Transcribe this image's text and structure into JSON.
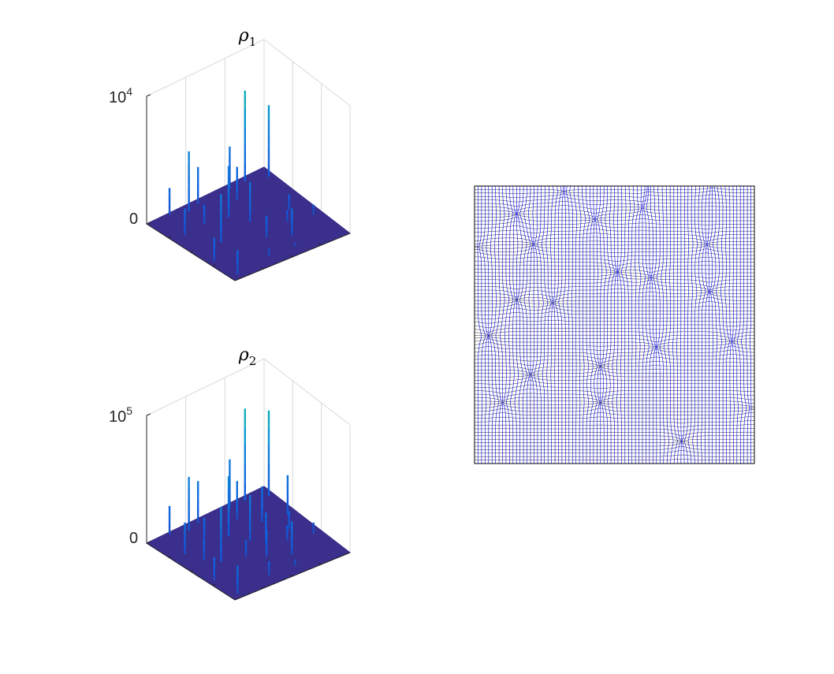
{
  "chart_data": [
    {
      "type": "surface3d",
      "title": "ρ",
      "title_subscript": "1",
      "zaxis": {
        "tick_labels": [
          "0",
          "10"
        ],
        "tick_exponents": [
          "",
          "4"
        ],
        "ylim": [
          0,
          10000
        ]
      },
      "grid": true,
      "colormap": "parula",
      "peaks": [
        {
          "x": 0.4,
          "y": 0.05,
          "z": 2900
        },
        {
          "x": 0.3,
          "y": 0.08,
          "z": 4700
        },
        {
          "x": 0.18,
          "y": 0.02,
          "z": 2100
        },
        {
          "x": 0.1,
          "y": 0.3,
          "z": 2100
        },
        {
          "x": 0.28,
          "y": 0.28,
          "z": 1500
        },
        {
          "x": 0.05,
          "y": 0.7,
          "z": 1800
        },
        {
          "x": 0.06,
          "y": 0.95,
          "z": 1900
        },
        {
          "x": 0.45,
          "y": 0.33,
          "z": 4000
        },
        {
          "x": 0.52,
          "y": 0.48,
          "z": 3100
        },
        {
          "x": 0.62,
          "y": 0.2,
          "z": 2600
        },
        {
          "x": 0.67,
          "y": 0.05,
          "z": 3300
        },
        {
          "x": 0.8,
          "y": 0.05,
          "z": 7100
        },
        {
          "x": 0.95,
          "y": 0.12,
          "z": 5600
        },
        {
          "x": 0.8,
          "y": 0.55,
          "z": 1200
        },
        {
          "x": 0.88,
          "y": 0.72,
          "z": 800
        },
        {
          "x": 0.48,
          "y": 0.72,
          "z": 1700
        },
        {
          "x": 0.62,
          "y": 0.82,
          "z": 2100
        },
        {
          "x": 0.35,
          "y": 0.92,
          "z": 600
        },
        {
          "x": 0.7,
          "y": 0.66,
          "z": 900
        },
        {
          "x": 0.22,
          "y": 0.55,
          "z": 3800
        },
        {
          "x": 0.55,
          "y": 0.95,
          "z": 300
        }
      ]
    },
    {
      "type": "surface3d",
      "title": "ρ",
      "title_subscript": "2",
      "zaxis": {
        "tick_labels": [
          "0",
          "10"
        ],
        "tick_exponents": [
          "",
          "5"
        ],
        "ylim": [
          0,
          100000
        ]
      },
      "grid": true,
      "colormap": "parula",
      "peaks": [
        {
          "x": 0.4,
          "y": 0.05,
          "z": 33000
        },
        {
          "x": 0.3,
          "y": 0.08,
          "z": 42000
        },
        {
          "x": 0.18,
          "y": 0.02,
          "z": 22000
        },
        {
          "x": 0.1,
          "y": 0.3,
          "z": 25000
        },
        {
          "x": 0.28,
          "y": 0.28,
          "z": 20000
        },
        {
          "x": 0.05,
          "y": 0.7,
          "z": 18000
        },
        {
          "x": 0.06,
          "y": 0.95,
          "z": 22000
        },
        {
          "x": 0.45,
          "y": 0.33,
          "z": 47000
        },
        {
          "x": 0.52,
          "y": 0.48,
          "z": 36000
        },
        {
          "x": 0.62,
          "y": 0.2,
          "z": 30000
        },
        {
          "x": 0.67,
          "y": 0.05,
          "z": 38000
        },
        {
          "x": 0.8,
          "y": 0.05,
          "z": 72000
        },
        {
          "x": 0.95,
          "y": 0.12,
          "z": 67000
        },
        {
          "x": 0.8,
          "y": 0.55,
          "z": 14000
        },
        {
          "x": 0.88,
          "y": 0.72,
          "z": 9000
        },
        {
          "x": 0.48,
          "y": 0.72,
          "z": 21000
        },
        {
          "x": 0.62,
          "y": 0.82,
          "z": 26000
        },
        {
          "x": 0.35,
          "y": 0.92,
          "z": 11000
        },
        {
          "x": 0.7,
          "y": 0.66,
          "z": 12000
        },
        {
          "x": 0.22,
          "y": 0.55,
          "z": 43000
        },
        {
          "x": 0.55,
          "y": 0.95,
          "z": 5000
        },
        {
          "x": 0.15,
          "y": 0.45,
          "z": 16000
        },
        {
          "x": 0.72,
          "y": 0.35,
          "z": 28000
        },
        {
          "x": 0.9,
          "y": 0.4,
          "z": 31000
        },
        {
          "x": 0.38,
          "y": 0.62,
          "z": 13000
        },
        {
          "x": 0.58,
          "y": 0.58,
          "z": 24000
        }
      ]
    },
    {
      "type": "mesh",
      "grid_lines_per_side": 80,
      "line_color": "#0000ff",
      "cluster_points": [
        {
          "x": 0.32,
          "y": 0.02,
          "s": 0.8
        },
        {
          "x": 0.62,
          "y": 0.01,
          "s": 0.7
        },
        {
          "x": 0.85,
          "y": 0.0,
          "s": 0.6
        },
        {
          "x": 0.15,
          "y": 0.1,
          "s": 1.0
        },
        {
          "x": 0.43,
          "y": 0.12,
          "s": 0.9
        },
        {
          "x": 0.6,
          "y": 0.08,
          "s": 0.8
        },
        {
          "x": 0.83,
          "y": 0.21,
          "s": 0.9
        },
        {
          "x": 0.01,
          "y": 0.22,
          "s": 0.8
        },
        {
          "x": 0.21,
          "y": 0.21,
          "s": 1.0
        },
        {
          "x": 0.51,
          "y": 0.31,
          "s": 1.1
        },
        {
          "x": 0.63,
          "y": 0.33,
          "s": 0.9
        },
        {
          "x": 0.84,
          "y": 0.38,
          "s": 1.0
        },
        {
          "x": 0.15,
          "y": 0.41,
          "s": 1.0
        },
        {
          "x": 0.28,
          "y": 0.42,
          "s": 1.0
        },
        {
          "x": 0.05,
          "y": 0.54,
          "s": 1.1
        },
        {
          "x": 0.65,
          "y": 0.58,
          "s": 1.0
        },
        {
          "x": 0.92,
          "y": 0.56,
          "s": 0.9
        },
        {
          "x": 0.45,
          "y": 0.65,
          "s": 1.0
        },
        {
          "x": 0.2,
          "y": 0.68,
          "s": 1.0
        },
        {
          "x": 0.1,
          "y": 0.78,
          "s": 0.9
        },
        {
          "x": 0.45,
          "y": 0.78,
          "s": 1.0
        },
        {
          "x": 0.99,
          "y": 0.8,
          "s": 0.7
        },
        {
          "x": 0.74,
          "y": 0.92,
          "s": 1.0
        }
      ]
    }
  ]
}
